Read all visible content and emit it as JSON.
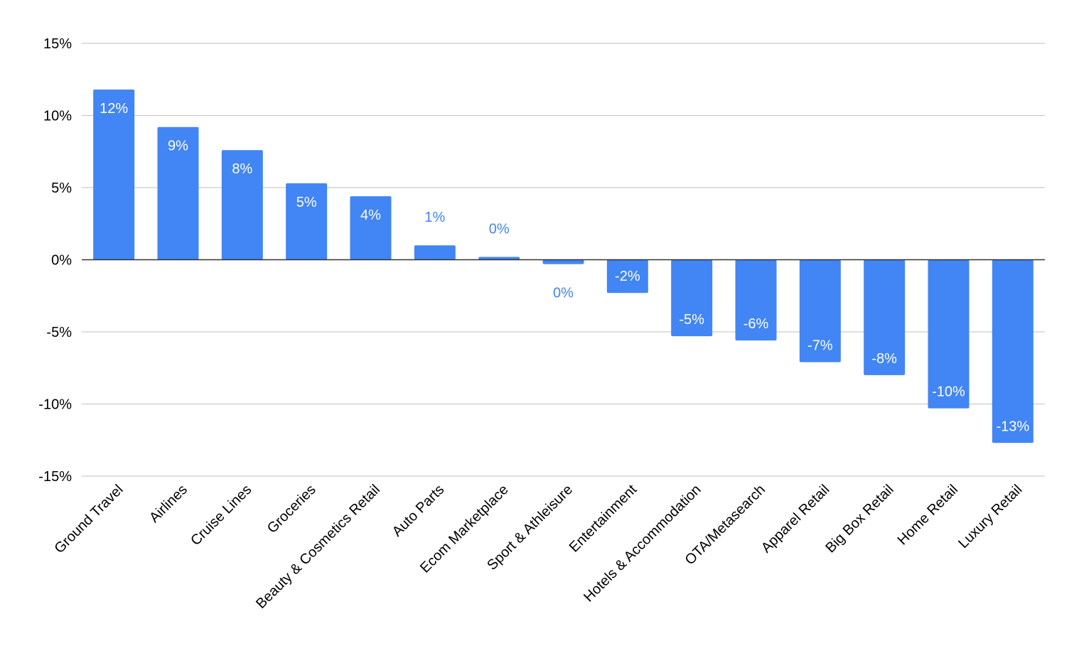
{
  "chart_data": {
    "type": "bar",
    "title": "",
    "xlabel": "",
    "ylabel": "",
    "ylim": [
      -15,
      15
    ],
    "yticks": [
      15,
      10,
      5,
      0,
      -5,
      -10,
      -15
    ],
    "ytick_labels": [
      "15%",
      "10%",
      "5%",
      "0%",
      "-5%",
      "-10%",
      "-15%"
    ],
    "grid": true,
    "legend": "none",
    "categories": [
      "Ground Travel",
      "Airlines",
      "Cruise Lines",
      "Groceries",
      "Beauty & Cosmetics Retail",
      "Auto Parts",
      "Ecom Marketplace",
      "Sport & Athleisure",
      "Entertainment",
      "Hotels & Accommodation",
      "OTA/Metasearch",
      "Apparel Retail",
      "Big Box Retail",
      "Home Retail",
      "Luxury Retail"
    ],
    "values": [
      11.8,
      9.2,
      7.6,
      5.3,
      4.4,
      1.0,
      0.2,
      -0.3,
      -2.3,
      -5.3,
      -5.6,
      -7.1,
      -8.0,
      -10.3,
      -12.7
    ],
    "data_labels": [
      "12%",
      "9%",
      "8%",
      "5%",
      "4%",
      "1%",
      "0%",
      "0%",
      "-2%",
      "-5%",
      "-6%",
      "-7%",
      "-8%",
      "-10%",
      "-13%"
    ],
    "colors": {
      "bar": "#4285f4",
      "grid": "#cccccc",
      "zero_line": "#333333",
      "label_inside": "#ffffff",
      "label_outside": "#4285f4"
    }
  }
}
